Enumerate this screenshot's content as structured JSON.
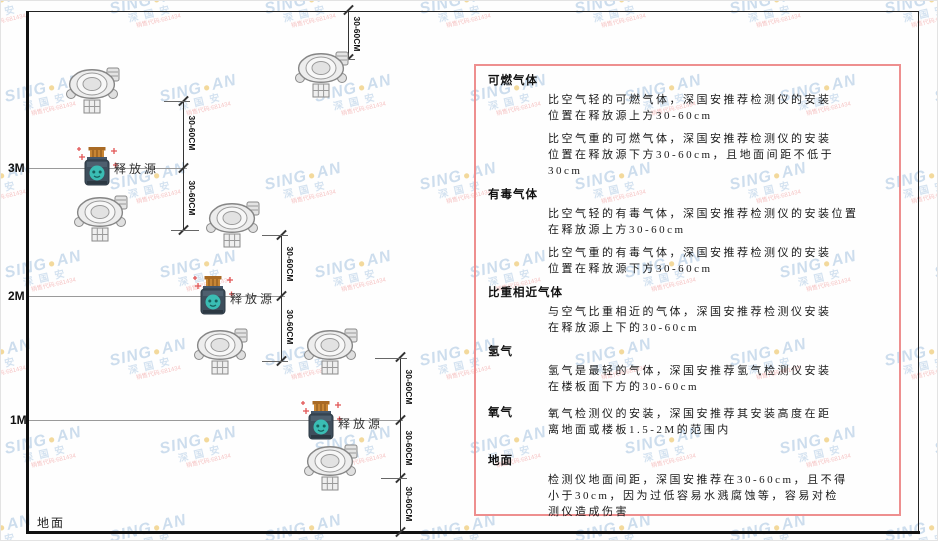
{
  "watermark": {
    "brand_left": "SING",
    "dot": "●",
    "brand_right": "AN",
    "cjk": "深国安",
    "red_line": "销售代码:681434"
  },
  "axis": {
    "m3": "3M",
    "m2": "2M",
    "m1": "1M",
    "ground": "地面"
  },
  "dims": {
    "label": "30-60CM"
  },
  "diagram": {
    "source_label": "释放源"
  },
  "panel": {
    "sections": [
      {
        "heading": "可燃气体",
        "paragraphs": [
          "比空气轻的可燃气体，深国安推荐检测仪的安装\n位置在释放源上方30-60cm",
          "比空气重的可燃气体，深国安推荐检测仪的安装\n位置在释放源下方30-60cm，且地面间距不低于\n30cm"
        ]
      },
      {
        "heading": "有毒气体",
        "paragraphs": [
          "比空气轻的有毒气体，深国安推荐检测仪的安装位置\n在释放源上方30-60cm",
          "比空气重的有毒气体，深国安推荐检测仪的安装\n位置在释放源下方30-60cm"
        ]
      },
      {
        "heading": "比重相近气体",
        "paragraphs": [
          "与空气比重相近的气体，深国安推荐检测仪安装\n在释放源上下的30-60cm"
        ]
      },
      {
        "heading": "氢气",
        "paragraphs": [
          "氢气是最轻的气体，深国安推荐氢气检测仪安装\n在楼板面下方的30-60cm"
        ]
      },
      {
        "heading": "氧气",
        "paragraphs": [
          "氧气检测仪的安装，深国安推荐其安装高度在距\n离地面或楼板1.5-2M的范围内"
        ]
      },
      {
        "heading": "地面",
        "paragraphs": [
          "检测仪地面间距，深国安推荐在30-60cm，且不得\n小于30cm，因为过低容易水溅腐蚀等，容易对检\n测仪造成伤害"
        ]
      }
    ]
  }
}
